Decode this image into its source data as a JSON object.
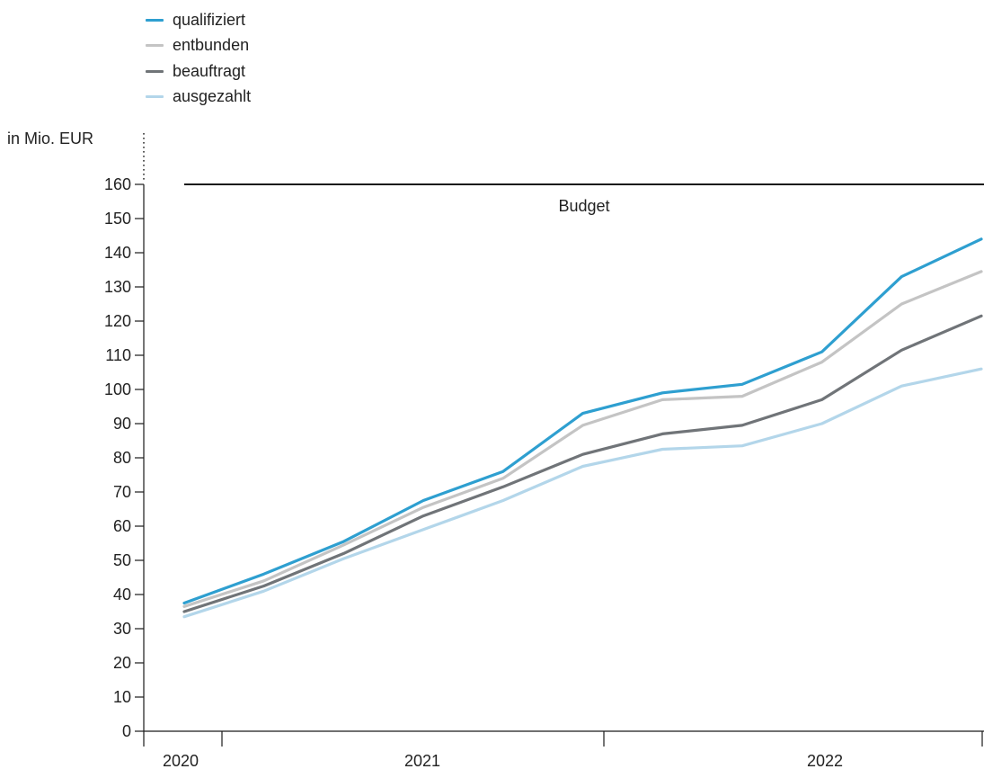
{
  "chart_data": {
    "type": "line",
    "ylabel": "in Mio. EUR",
    "ylim": [
      0,
      160
    ],
    "yticks": [
      "0",
      "10",
      "20",
      "30",
      "40",
      "50",
      "60",
      "70",
      "80",
      "90",
      "100",
      "110",
      "120",
      "130",
      "140",
      "150",
      "160"
    ],
    "x_periods": [
      "2020",
      "2021",
      "2022"
    ],
    "x": [
      0,
      1,
      2,
      3,
      4,
      5,
      6,
      7,
      8,
      9,
      10
    ],
    "series": [
      {
        "name": "qualifiziert",
        "color": "#2e9fd0",
        "values": [
          37.5,
          46,
          55.5,
          67.5,
          76,
          93,
          99,
          101.5,
          111,
          133,
          144
        ]
      },
      {
        "name": "entbunden",
        "color": "#c4c4c4",
        "values": [
          36.5,
          44,
          54.5,
          65.5,
          74,
          89.5,
          97,
          98,
          108,
          125,
          134.5
        ]
      },
      {
        "name": "beauftragt",
        "color": "#707478",
        "values": [
          35,
          42.5,
          52,
          63,
          71.5,
          81,
          87,
          89.5,
          97,
          111.5,
          121.5
        ]
      },
      {
        "name": "ausgezahlt",
        "color": "#b3d6ea",
        "values": [
          33.5,
          41,
          50.5,
          59,
          67.5,
          77.5,
          82.5,
          83.5,
          90,
          101,
          106
        ]
      }
    ],
    "budget": {
      "label": "Budget",
      "value": 160,
      "color": "#1a1a1a"
    },
    "legend_position": "top-left",
    "grid": false
  }
}
